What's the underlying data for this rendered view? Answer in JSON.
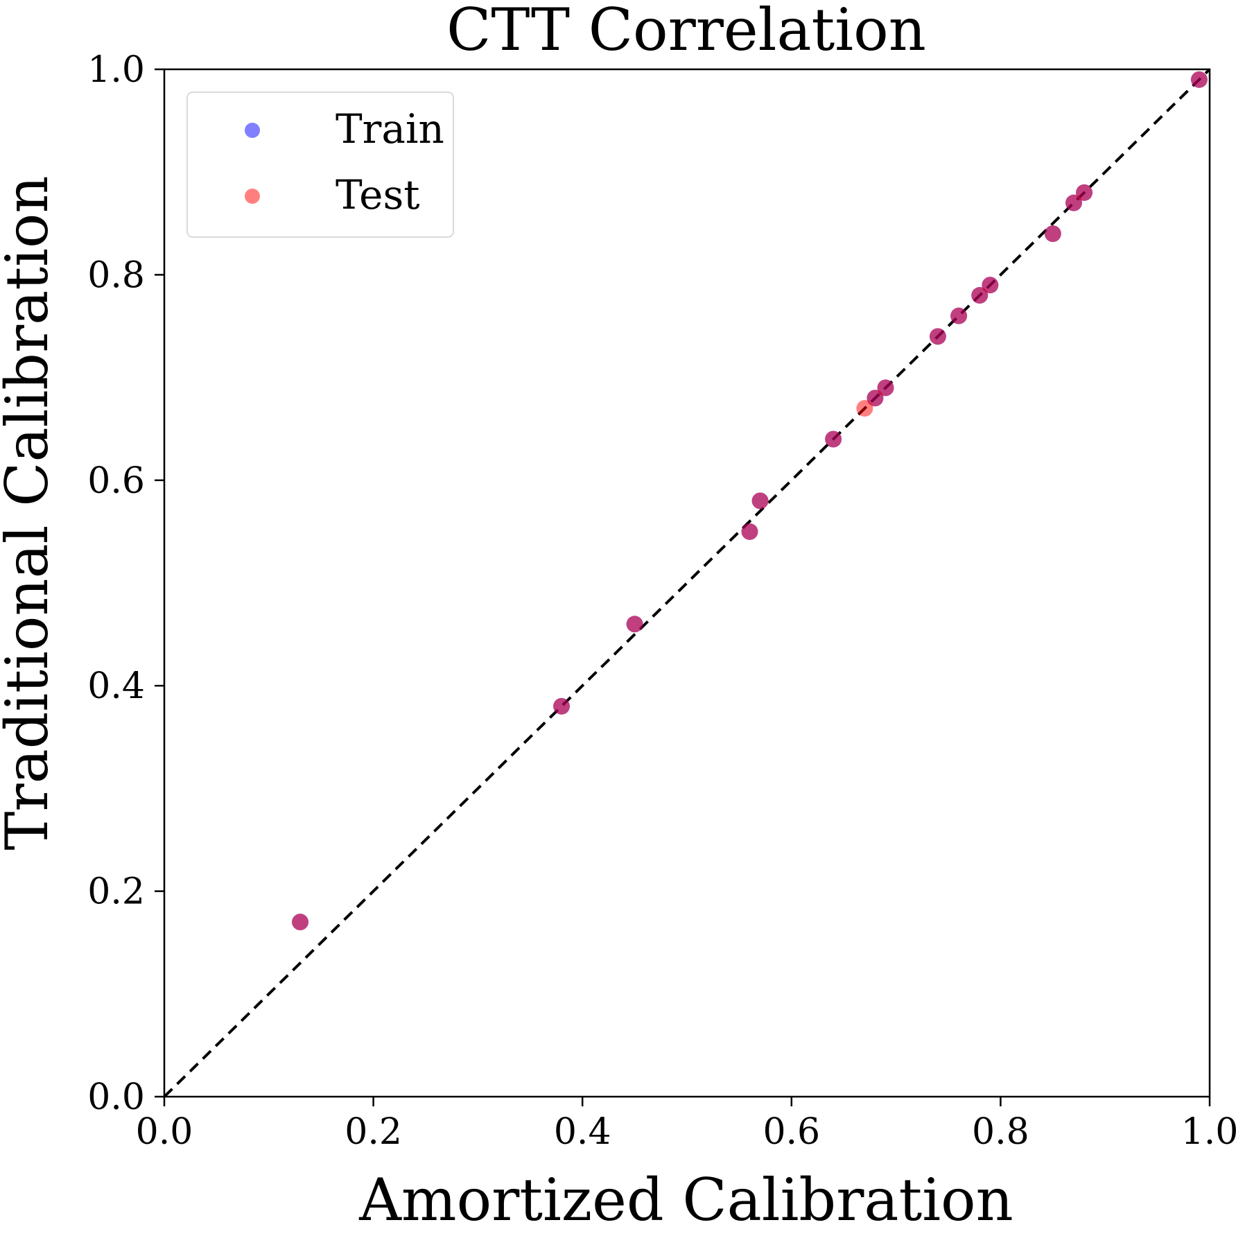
{
  "chart_data": {
    "type": "scatter",
    "title": "CTT Correlation",
    "xlabel": "Amortized Calibration",
    "ylabel": "Traditional Calibration",
    "xlim": [
      0.0,
      1.0
    ],
    "ylim": [
      0.0,
      1.0
    ],
    "xticks": [
      0.0,
      0.2,
      0.4,
      0.6,
      0.8,
      1.0
    ],
    "yticks": [
      0.0,
      0.2,
      0.4,
      0.6,
      0.8,
      1.0
    ],
    "xtick_labels": [
      "0.0",
      "0.2",
      "0.4",
      "0.6",
      "0.8",
      "1.0"
    ],
    "ytick_labels": [
      "0.0",
      "0.2",
      "0.4",
      "0.6",
      "0.8",
      "1.0"
    ],
    "grid": false,
    "legend_position": "top-left",
    "reference_line": {
      "style": "dashed",
      "from": [
        0.0,
        0.0
      ],
      "to": [
        1.0,
        1.0
      ],
      "color": "#000000"
    },
    "series": [
      {
        "name": "Train",
        "color": "#0000ff",
        "x": [
          0.13,
          0.38,
          0.45,
          0.56,
          0.57,
          0.64,
          0.68,
          0.69,
          0.74,
          0.76,
          0.78,
          0.79,
          0.85,
          0.87,
          0.88,
          0.99
        ],
        "y": [
          0.17,
          0.38,
          0.46,
          0.55,
          0.58,
          0.64,
          0.68,
          0.69,
          0.74,
          0.76,
          0.78,
          0.79,
          0.84,
          0.87,
          0.88,
          0.99
        ]
      },
      {
        "name": "Test",
        "color": "#ff0000",
        "x": [
          0.13,
          0.38,
          0.45,
          0.56,
          0.57,
          0.64,
          0.67,
          0.68,
          0.69,
          0.74,
          0.76,
          0.78,
          0.79,
          0.85,
          0.87,
          0.88,
          0.99
        ],
        "y": [
          0.17,
          0.38,
          0.46,
          0.55,
          0.58,
          0.64,
          0.67,
          0.68,
          0.69,
          0.74,
          0.76,
          0.78,
          0.79,
          0.84,
          0.87,
          0.88,
          0.99
        ]
      }
    ]
  }
}
